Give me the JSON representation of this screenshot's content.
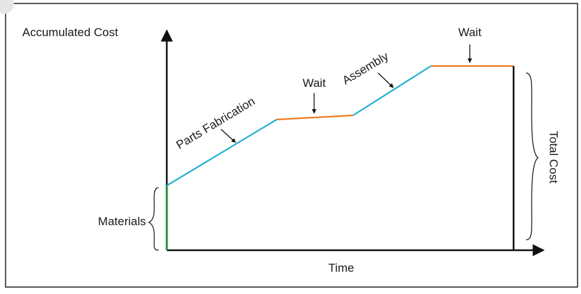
{
  "diagram": {
    "y_axis_label": "Accumulated Cost",
    "x_axis_label": "Time",
    "stages": {
      "materials": "Materials",
      "parts_fabrication": "Parts Fabrication",
      "wait_1": "Wait",
      "assembly": "Assembly",
      "wait_2": "Wait",
      "total_cost": "Total Cost"
    },
    "colors": {
      "materials_segment": "#2e8b3a",
      "processing_segment": "#1fb0d2",
      "wait_segment": "#ee7d23",
      "axes": "#111111",
      "border": "#222222"
    }
  }
}
